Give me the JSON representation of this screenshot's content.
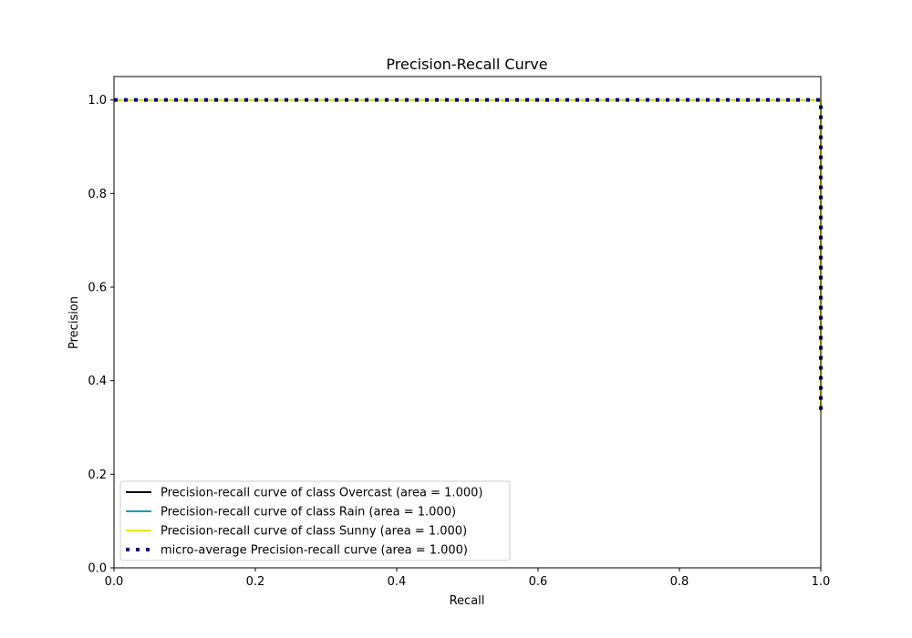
{
  "chart_data": {
    "type": "line",
    "title": "Precision-Recall Curve",
    "xlabel": "Recall",
    "ylabel": "Precision",
    "xlim": [
      0.0,
      1.0
    ],
    "ylim": [
      0.0,
      1.05
    ],
    "xticks": [
      "0.0",
      "0.2",
      "0.4",
      "0.6",
      "0.8",
      "1.0"
    ],
    "yticks": [
      "0.0",
      "0.2",
      "0.4",
      "0.6",
      "0.8",
      "1.0"
    ],
    "xtick_values": [
      0.0,
      0.2,
      0.4,
      0.6,
      0.8,
      1.0
    ],
    "ytick_values": [
      0.0,
      0.2,
      0.4,
      0.6,
      0.8,
      1.0
    ],
    "grid": false,
    "legend_position": "lower-left",
    "series": [
      {
        "name": "Precision-recall curve of class Overcast (area = 1.000)",
        "color": "#000000",
        "style": "solid",
        "x": [
          0.0,
          1.0,
          1.0
        ],
        "y": [
          1.0,
          1.0,
          0.333
        ]
      },
      {
        "name": "Precision-recall curve of class Rain (area = 1.000)",
        "color": "#1a9fb8",
        "style": "solid",
        "x": [
          0.0,
          1.0,
          1.0
        ],
        "y": [
          1.0,
          1.0,
          0.333
        ]
      },
      {
        "name": "Precision-recall curve of class Sunny (area = 1.000)",
        "color": "#dfee1c",
        "style": "solid",
        "x": [
          0.0,
          1.0,
          1.0
        ],
        "y": [
          1.0,
          1.0,
          0.333
        ]
      },
      {
        "name": "micro-average Precision-recall curve (area = 1.000)",
        "color": "#000080",
        "style": "dotted",
        "x": [
          0.0,
          1.0,
          1.0
        ],
        "y": [
          1.0,
          1.0,
          0.333
        ]
      }
    ]
  }
}
